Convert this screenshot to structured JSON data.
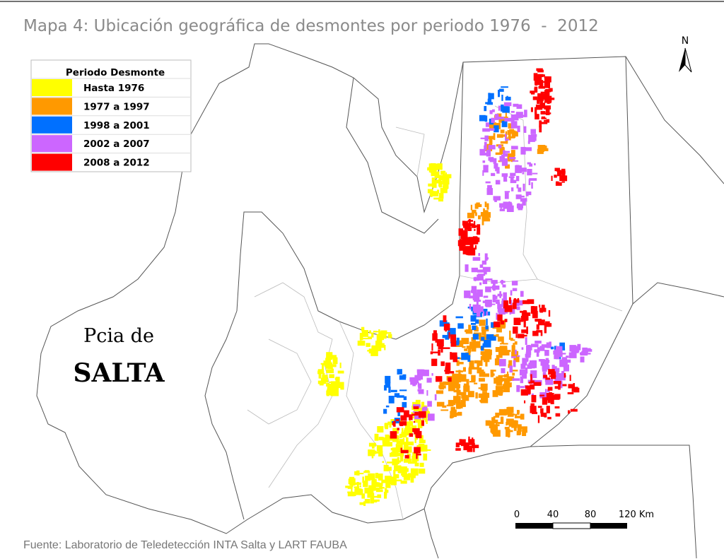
{
  "header": {
    "title": "Mapa 4: Ubicación geográfica de desmontes por periodo 1976  -  2012"
  },
  "legend": {
    "title": "Periodo Desmonte",
    "items": [
      {
        "label": "Hasta 1976",
        "color": "#ffff00"
      },
      {
        "label": "1977 a 1997",
        "color": "#ff9900"
      },
      {
        "label": "1998 a 2001",
        "color": "#0070ff"
      },
      {
        "label": "2002 a 2007",
        "color": "#cc66ff"
      },
      {
        "label": "2008 a 2012",
        "color": "#ff0000"
      }
    ]
  },
  "map_labels": {
    "province_prefix": "Pcia de",
    "province_name": "SALTA"
  },
  "north_arrow": {
    "label": "N"
  },
  "scale_bar": {
    "labels": [
      "0",
      "40",
      "80",
      "120 Km"
    ]
  },
  "footer": {
    "source": "Fuente: Laboratorio de Teledetección INTA Salta y LART FAUBA"
  }
}
